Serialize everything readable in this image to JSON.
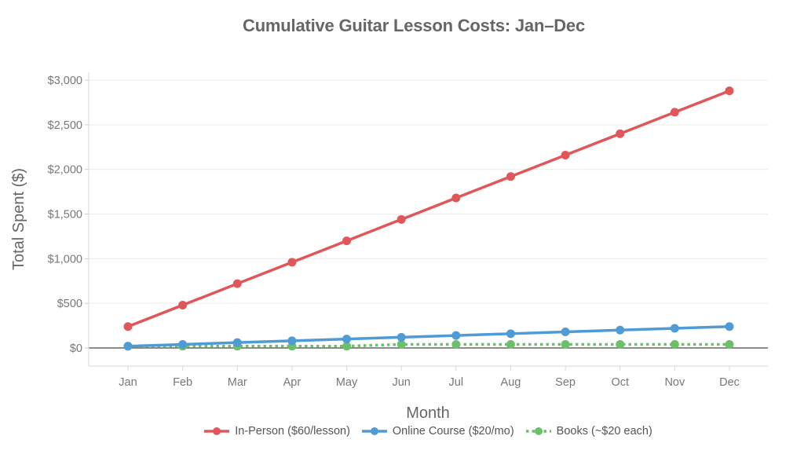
{
  "chart_data": {
    "type": "line",
    "title": "Cumulative Guitar Lesson Costs: Jan–Dec",
    "xlabel": "Month",
    "ylabel": "Total Spent ($)",
    "categories": [
      "Jan",
      "Feb",
      "Mar",
      "Apr",
      "May",
      "Jun",
      "Jul",
      "Aug",
      "Sep",
      "Oct",
      "Nov",
      "Dec"
    ],
    "series": [
      {
        "name": "In-Person ($60/lesson)",
        "color": "#e15759",
        "dash": "solid",
        "values": [
          240,
          480,
          720,
          960,
          1200,
          1440,
          1680,
          1920,
          2160,
          2400,
          2640,
          2880
        ]
      },
      {
        "name": "Online Course ($20/mo)",
        "color": "#4e9bd6",
        "dash": "solid",
        "values": [
          20,
          40,
          60,
          80,
          100,
          120,
          140,
          160,
          180,
          200,
          220,
          240
        ]
      },
      {
        "name": "Books (~$20 each)",
        "color": "#6cc06a",
        "dash": "dotted",
        "values": [
          20,
          20,
          20,
          20,
          20,
          40,
          40,
          40,
          40,
          40,
          40,
          40
        ]
      }
    ],
    "yticks": [
      0,
      500,
      1000,
      1500,
      2000,
      2500,
      3000
    ],
    "ytick_labels": [
      "$0",
      "$500",
      "$1,000",
      "$1,500",
      "$2,000",
      "$2,500",
      "$3,000"
    ],
    "ylim": [
      -200,
      3100
    ],
    "grid": true,
    "legend_position": "bottom"
  }
}
